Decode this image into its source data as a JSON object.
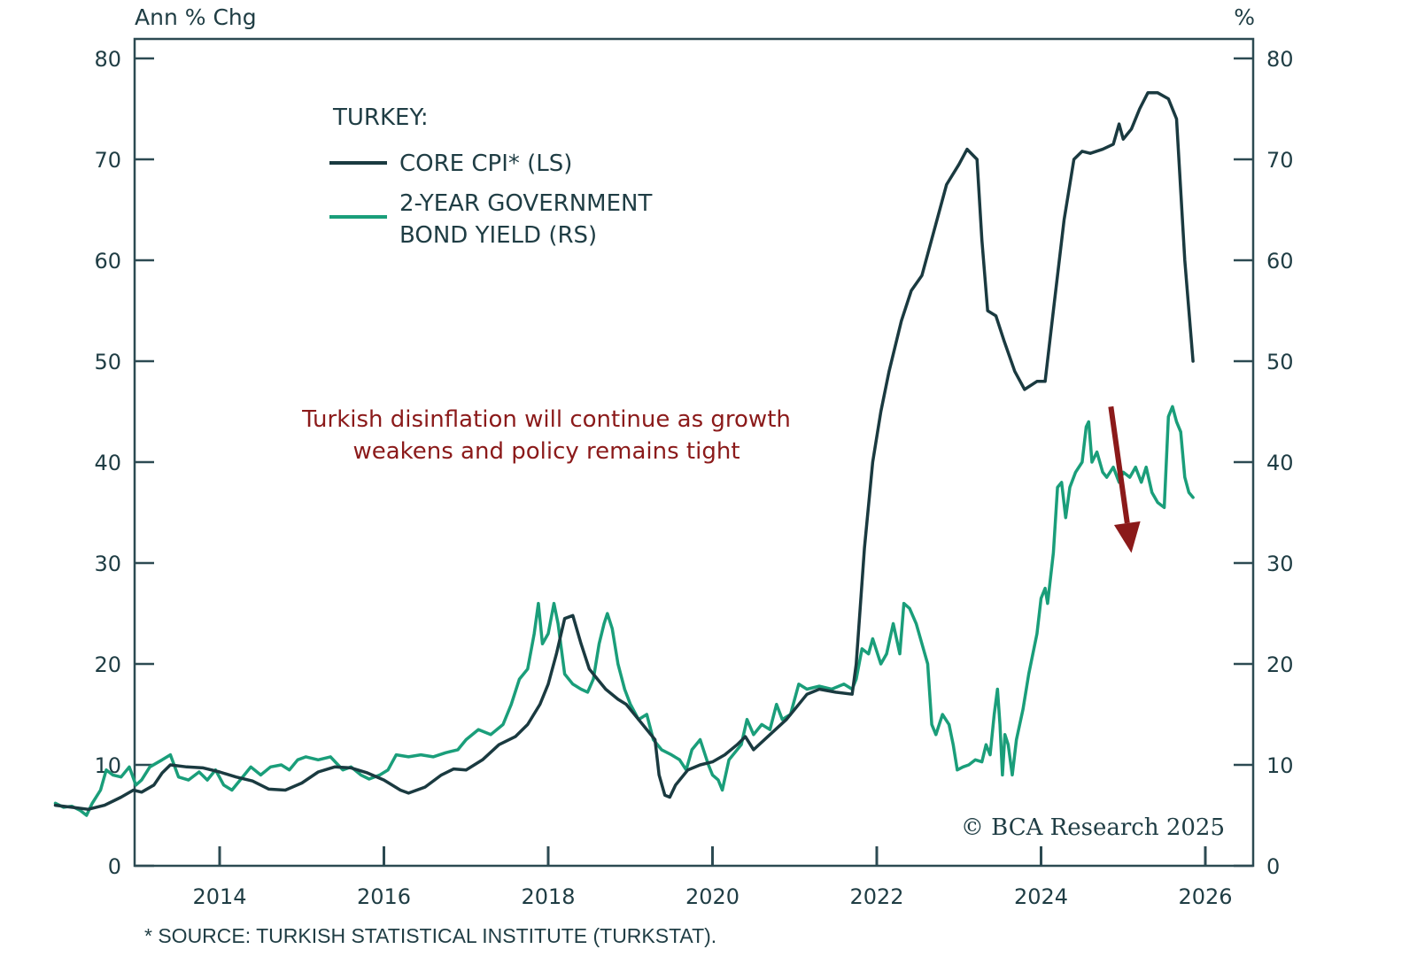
{
  "chart_data": {
    "type": "line",
    "title": "TURKEY:",
    "left_axis_label": "Ann % Chg",
    "right_axis_label": "%",
    "xlim": [
      2012.96,
      2026.6
    ],
    "ylim_left": [
      0,
      80
    ],
    "ylim_right": [
      0,
      80
    ],
    "y_ticks": [
      0,
      10,
      20,
      30,
      40,
      50,
      60,
      70,
      80
    ],
    "y_tick_labels": [
      "0",
      "10",
      "20",
      "30",
      "40",
      "50",
      "60",
      "70",
      "80"
    ],
    "x_ticks": [
      2014,
      2016,
      2018,
      2020,
      2022,
      2024,
      2026
    ],
    "x_tick_labels": [
      "2014",
      "2016",
      "2018",
      "2020",
      "2022",
      "2024",
      "2026"
    ],
    "grid": false,
    "legend_position": "top-left",
    "legend": [
      {
        "label": "CORE CPI* (LS)",
        "color": "#1a3a40"
      },
      {
        "label_line1": "2-YEAR GOVERNMENT",
        "label_line2": "BOND YIELD (RS)",
        "color": "#1a9e7a"
      }
    ],
    "annotation": {
      "line1": "Turkish disinflation will continue as growth",
      "line2": "weakens and policy remains tight",
      "color": "#8b1a1a",
      "arrow": "down-right",
      "arrow_from": [
        2025.85,
        45.5
      ],
      "arrow_to": [
        2026.1,
        31
      ]
    },
    "series": [
      {
        "name": "CORE CPI* (LS)",
        "axis": "left",
        "color": "#1a3a40",
        "points": [
          [
            2013.0,
            6.0
          ],
          [
            2013.2,
            5.8
          ],
          [
            2013.4,
            5.6
          ],
          [
            2013.6,
            6.0
          ],
          [
            2013.8,
            6.8
          ],
          [
            2013.95,
            7.5
          ],
          [
            2014.05,
            7.3
          ],
          [
            2014.2,
            8.0
          ],
          [
            2014.3,
            9.2
          ],
          [
            2014.4,
            10.0
          ],
          [
            2014.6,
            9.8
          ],
          [
            2014.8,
            9.7
          ],
          [
            2015.0,
            9.3
          ],
          [
            2015.2,
            8.8
          ],
          [
            2015.4,
            8.4
          ],
          [
            2015.6,
            7.6
          ],
          [
            2015.8,
            7.5
          ],
          [
            2016.0,
            8.2
          ],
          [
            2016.2,
            9.3
          ],
          [
            2016.4,
            9.8
          ],
          [
            2016.6,
            9.7
          ],
          [
            2016.8,
            9.2
          ],
          [
            2017.0,
            8.5
          ],
          [
            2017.2,
            7.5
          ],
          [
            2017.3,
            7.2
          ],
          [
            2017.5,
            7.8
          ],
          [
            2017.7,
            9.0
          ],
          [
            2017.85,
            9.6
          ],
          [
            2018.0,
            9.5
          ],
          [
            2018.2,
            10.5
          ],
          [
            2018.4,
            12.0
          ],
          [
            2018.6,
            12.8
          ],
          [
            2018.75,
            14.0
          ],
          [
            2018.9,
            16.0
          ],
          [
            2019.0,
            18.0
          ],
          [
            2019.1,
            21.0
          ],
          [
            2019.2,
            24.5
          ],
          [
            2019.3,
            24.8
          ],
          [
            2019.4,
            22.0
          ],
          [
            2019.5,
            19.5
          ],
          [
            2019.6,
            18.5
          ],
          [
            2019.7,
            17.5
          ],
          [
            2019.85,
            16.5
          ],
          [
            2019.95,
            16.0
          ],
          [
            2020.1,
            14.5
          ],
          [
            2020.2,
            13.5
          ],
          [
            2020.3,
            12.5
          ],
          [
            2020.35,
            9.0
          ],
          [
            2020.42,
            7.0
          ],
          [
            2020.48,
            6.8
          ],
          [
            2020.55,
            8.0
          ],
          [
            2020.7,
            9.5
          ],
          [
            2020.85,
            10.0
          ],
          [
            2021.0,
            10.3
          ],
          [
            2021.15,
            11.0
          ],
          [
            2021.3,
            12.0
          ],
          [
            2021.4,
            12.8
          ],
          [
            2021.5,
            11.5
          ],
          [
            2021.7,
            13.0
          ],
          [
            2021.9,
            14.5
          ],
          [
            2022.0,
            15.5
          ],
          [
            2022.15,
            17.0
          ],
          [
            2022.3,
            17.5
          ],
          [
            2022.5,
            17.2
          ],
          [
            2022.7,
            17.0
          ],
          [
            2022.75,
            20.0
          ],
          [
            2022.85,
            31.5
          ],
          [
            2022.95,
            40.0
          ],
          [
            2023.05,
            45.0
          ],
          [
            2023.15,
            49.0
          ],
          [
            2023.3,
            54.0
          ],
          [
            2023.42,
            57.0
          ],
          [
            2023.55,
            58.5
          ],
          [
            2023.7,
            63.0
          ],
          [
            2023.85,
            67.5
          ],
          [
            2024.0,
            69.5
          ],
          [
            2024.1,
            71.0
          ],
          [
            2024.22,
            70.0
          ],
          [
            2024.28,
            62.0
          ],
          [
            2024.35,
            55.0
          ],
          [
            2024.45,
            54.5
          ],
          [
            2024.55,
            52.0
          ],
          [
            2024.68,
            49.0
          ],
          [
            2024.8,
            47.2
          ],
          [
            2024.95,
            48.0
          ],
          [
            2025.05,
            48.0
          ],
          [
            2025.15,
            55.0
          ],
          [
            2025.28,
            64.0
          ],
          [
            2025.35,
            67.5
          ],
          [
            2025.4,
            70.0
          ],
          [
            2025.5,
            70.8
          ],
          [
            2025.6,
            70.6
          ],
          [
            2025.75,
            71.0
          ],
          [
            2025.88,
            71.5
          ],
          [
            2025.95,
            73.5
          ],
          [
            2026.0,
            72.0
          ],
          [
            2026.1,
            73.0
          ],
          [
            2026.2,
            75.0
          ],
          [
            2026.3,
            76.6
          ],
          [
            2026.42,
            76.6
          ],
          [
            2026.55,
            76.0
          ],
          [
            2026.65,
            74.0
          ],
          [
            2026.75,
            60.0
          ],
          [
            2026.85,
            50.0
          ]
        ]
      },
      {
        "name": "2-YEAR GOVERNMENT BOND YIELD (RS)",
        "axis": "right",
        "color": "#1a9e7a",
        "points": [
          [
            2013.0,
            6.2
          ],
          [
            2013.1,
            5.8
          ],
          [
            2013.2,
            5.9
          ],
          [
            2013.3,
            5.5
          ],
          [
            2013.38,
            5.0
          ],
          [
            2013.45,
            6.2
          ],
          [
            2013.55,
            7.5
          ],
          [
            2013.62,
            9.5
          ],
          [
            2013.7,
            9.0
          ],
          [
            2013.8,
            8.8
          ],
          [
            2013.9,
            9.8
          ],
          [
            2013.98,
            8.0
          ],
          [
            2014.05,
            8.5
          ],
          [
            2014.15,
            9.8
          ],
          [
            2014.3,
            10.5
          ],
          [
            2014.4,
            11.0
          ],
          [
            2014.5,
            8.8
          ],
          [
            2014.62,
            8.5
          ],
          [
            2014.75,
            9.3
          ],
          [
            2014.85,
            8.5
          ],
          [
            2014.95,
            9.5
          ],
          [
            2015.05,
            8.0
          ],
          [
            2015.15,
            7.5
          ],
          [
            2015.25,
            8.5
          ],
          [
            2015.38,
            9.8
          ],
          [
            2015.5,
            9.0
          ],
          [
            2015.62,
            9.8
          ],
          [
            2015.75,
            10.0
          ],
          [
            2015.85,
            9.5
          ],
          [
            2015.95,
            10.5
          ],
          [
            2016.05,
            10.8
          ],
          [
            2016.2,
            10.5
          ],
          [
            2016.35,
            10.8
          ],
          [
            2016.5,
            9.5
          ],
          [
            2016.6,
            9.8
          ],
          [
            2016.72,
            9.0
          ],
          [
            2016.82,
            8.6
          ],
          [
            2016.95,
            9.0
          ],
          [
            2017.05,
            9.5
          ],
          [
            2017.15,
            11.0
          ],
          [
            2017.3,
            10.8
          ],
          [
            2017.45,
            11.0
          ],
          [
            2017.6,
            10.8
          ],
          [
            2017.75,
            11.2
          ],
          [
            2017.9,
            11.5
          ],
          [
            2018.0,
            12.5
          ],
          [
            2018.15,
            13.5
          ],
          [
            2018.3,
            13.0
          ],
          [
            2018.45,
            14.0
          ],
          [
            2018.55,
            16.0
          ],
          [
            2018.65,
            18.5
          ],
          [
            2018.75,
            19.5
          ],
          [
            2018.83,
            23.0
          ],
          [
            2018.88,
            26.0
          ],
          [
            2018.93,
            22.0
          ],
          [
            2019.0,
            23.0
          ],
          [
            2019.07,
            26.0
          ],
          [
            2019.12,
            24.0
          ],
          [
            2019.2,
            19.0
          ],
          [
            2019.3,
            18.0
          ],
          [
            2019.4,
            17.5
          ],
          [
            2019.48,
            17.2
          ],
          [
            2019.55,
            18.5
          ],
          [
            2019.62,
            22.0
          ],
          [
            2019.68,
            24.0
          ],
          [
            2019.72,
            25.0
          ],
          [
            2019.78,
            23.5
          ],
          [
            2019.85,
            20.0
          ],
          [
            2019.93,
            17.5
          ],
          [
            2020.0,
            16.0
          ],
          [
            2020.1,
            14.5
          ],
          [
            2020.2,
            15.0
          ],
          [
            2020.28,
            12.5
          ],
          [
            2020.38,
            11.5
          ],
          [
            2020.5,
            11.0
          ],
          [
            2020.6,
            10.5
          ],
          [
            2020.68,
            9.5
          ],
          [
            2020.75,
            11.5
          ],
          [
            2020.85,
            12.5
          ],
          [
            2020.95,
            10.0
          ],
          [
            2021.0,
            9.0
          ],
          [
            2021.07,
            8.5
          ],
          [
            2021.12,
            7.5
          ],
          [
            2021.2,
            10.5
          ],
          [
            2021.35,
            12.0
          ],
          [
            2021.42,
            14.5
          ],
          [
            2021.5,
            13.0
          ],
          [
            2021.6,
            14.0
          ],
          [
            2021.7,
            13.5
          ],
          [
            2021.78,
            16.0
          ],
          [
            2021.85,
            14.5
          ],
          [
            2021.95,
            15.0
          ],
          [
            2022.05,
            18.0
          ],
          [
            2022.15,
            17.5
          ],
          [
            2022.3,
            17.8
          ],
          [
            2022.45,
            17.5
          ],
          [
            2022.6,
            18.0
          ],
          [
            2022.7,
            17.5
          ],
          [
            2022.75,
            18.5
          ],
          [
            2022.82,
            21.5
          ],
          [
            2022.9,
            21.0
          ],
          [
            2022.95,
            22.5
          ],
          [
            2023.05,
            20.0
          ],
          [
            2023.12,
            21.0
          ],
          [
            2023.2,
            24.0
          ],
          [
            2023.28,
            21.0
          ],
          [
            2023.33,
            26.0
          ],
          [
            2023.4,
            25.5
          ],
          [
            2023.48,
            24.0
          ],
          [
            2023.55,
            22.0
          ],
          [
            2023.62,
            20.0
          ],
          [
            2023.67,
            14.0
          ],
          [
            2023.72,
            13.0
          ],
          [
            2023.8,
            15.0
          ],
          [
            2023.88,
            14.0
          ],
          [
            2023.93,
            12.0
          ],
          [
            2023.98,
            9.5
          ],
          [
            2024.05,
            9.8
          ],
          [
            2024.12,
            10.0
          ],
          [
            2024.2,
            10.5
          ],
          [
            2024.28,
            10.3
          ],
          [
            2024.33,
            12.0
          ],
          [
            2024.38,
            11.0
          ],
          [
            2024.43,
            15.0
          ],
          [
            2024.47,
            17.5
          ],
          [
            2024.5,
            14.0
          ],
          [
            2024.53,
            9.0
          ],
          [
            2024.56,
            13.0
          ],
          [
            2024.6,
            12.0
          ],
          [
            2024.65,
            9.0
          ],
          [
            2024.7,
            12.5
          ],
          [
            2024.78,
            15.5
          ],
          [
            2024.85,
            19.0
          ],
          [
            2024.95,
            23.0
          ],
          [
            2025.0,
            26.5
          ],
          [
            2025.05,
            27.5
          ],
          [
            2025.08,
            26.0
          ],
          [
            2025.15,
            31.0
          ],
          [
            2025.2,
            37.5
          ],
          [
            2025.25,
            38.0
          ],
          [
            2025.3,
            34.5
          ],
          [
            2025.35,
            37.5
          ],
          [
            2025.42,
            39.0
          ],
          [
            2025.5,
            40.0
          ],
          [
            2025.55,
            43.5
          ],
          [
            2025.58,
            44.0
          ],
          [
            2025.62,
            40.0
          ],
          [
            2025.68,
            41.0
          ],
          [
            2025.75,
            39.0
          ],
          [
            2025.8,
            38.5
          ],
          [
            2025.88,
            39.5
          ],
          [
            2025.95,
            38.0
          ],
          [
            2026.0,
            39.0
          ],
          [
            2026.08,
            38.5
          ],
          [
            2026.15,
            39.5
          ],
          [
            2026.22,
            38.0
          ],
          [
            2026.28,
            39.5
          ],
          [
            2026.35,
            37.0
          ],
          [
            2026.42,
            36.0
          ],
          [
            2026.5,
            35.5
          ],
          [
            2026.55,
            44.5
          ],
          [
            2026.6,
            45.5
          ],
          [
            2026.65,
            44.0
          ],
          [
            2026.7,
            43.0
          ],
          [
            2026.75,
            38.5
          ],
          [
            2026.8,
            37.0
          ],
          [
            2026.85,
            36.5
          ]
        ]
      }
    ]
  },
  "footnote": "* SOURCE: TURKISH STATISTICAL INSTITUTE (TURKSTAT).",
  "copyright": "© BCA Research 2025"
}
